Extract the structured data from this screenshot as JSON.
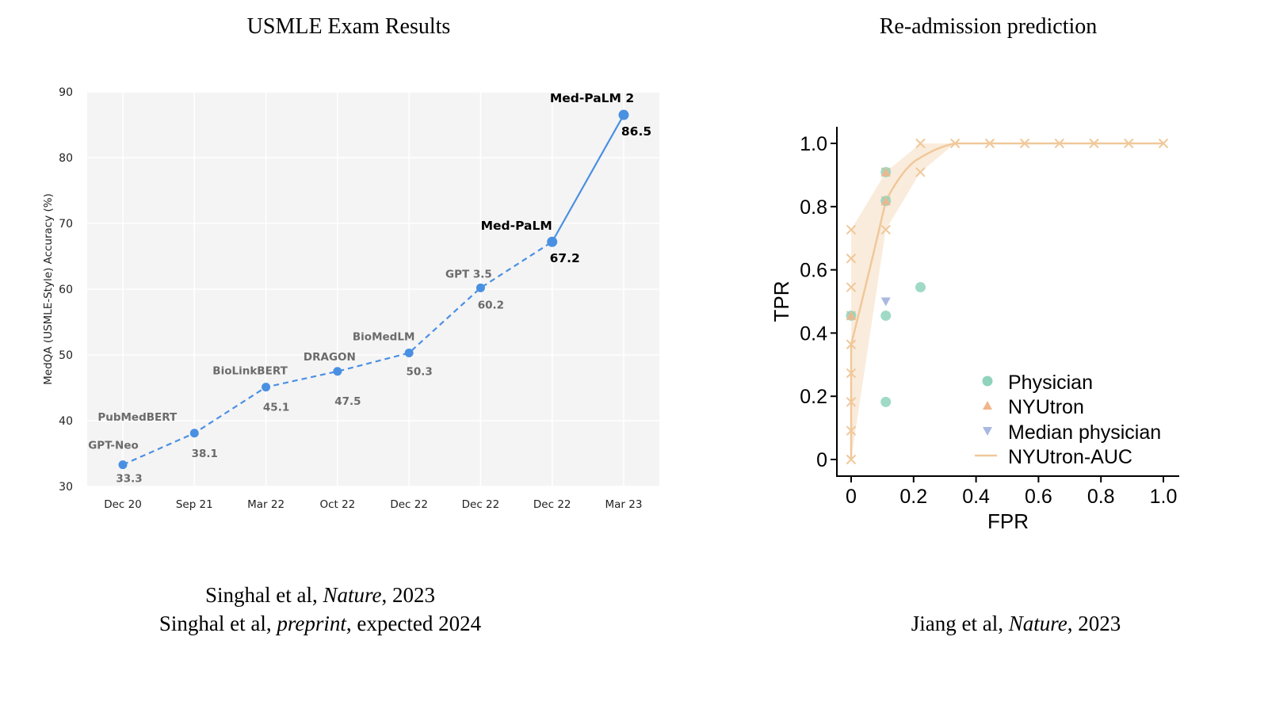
{
  "left_panel": {
    "title": "USMLE Exam Results",
    "citation_1": {
      "authors": "Singhal et al, ",
      "journal": "Nature",
      "year": ", 2023"
    },
    "citation_2": {
      "authors": "Singhal et al, ",
      "journal": "preprint",
      "year": ", expected 2024"
    }
  },
  "right_panel": {
    "title": "Re-admission prediction",
    "citation": {
      "authors": "Jiang et al, ",
      "journal": "Nature",
      "year": ", 2023"
    }
  },
  "colors": {
    "line": "#4a90e2",
    "background": "#f4f4f4",
    "label_gray": "#6b6b6b",
    "orange": "#f0c89a",
    "teal": "#8fd3bc",
    "triangle_blue": "#a9b8e0"
  },
  "chart_data": [
    {
      "type": "line",
      "ylabel": "MedQA (USMLE-Style) Accuracy (%)",
      "xlabel": "",
      "ylim": [
        30,
        90
      ],
      "yticks": [
        "30",
        "40",
        "50",
        "60",
        "70",
        "80",
        "90"
      ],
      "categories": [
        "Dec 20",
        "Sep 21",
        "Mar 22",
        "Oct 22",
        "Dec 22",
        "Dec 22",
        "Dec 22",
        "Mar 23"
      ],
      "points": [
        {
          "model": "GPT-Neo",
          "value": 33.3,
          "value_label": "33.3",
          "highlight": false
        },
        {
          "model": "PubMedBERT",
          "value": 38.1,
          "value_label": "38.1",
          "highlight": false
        },
        {
          "model": "BioLinkBERT",
          "value": 45.1,
          "value_label": "45.1",
          "highlight": false
        },
        {
          "model": "DRAGON",
          "value": 47.5,
          "value_label": "47.5",
          "highlight": false
        },
        {
          "model": "BioMedLM",
          "value": 50.3,
          "value_label": "50.3",
          "highlight": false
        },
        {
          "model": "GPT 3.5",
          "value": 60.2,
          "value_label": "60.2",
          "highlight": false
        },
        {
          "model": "Med-PaLM",
          "value": 67.2,
          "value_label": "67.2",
          "highlight": true
        },
        {
          "model": "Med-PaLM 2",
          "value": 86.5,
          "value_label": "86.5",
          "highlight": true
        }
      ],
      "grid": true
    },
    {
      "type": "scatter",
      "xlabel": "FPR",
      "ylabel": "TPR",
      "xlim": [
        0,
        1
      ],
      "ylim": [
        0,
        1
      ],
      "xticks": [
        "0",
        "0.2",
        "0.4",
        "0.6",
        "0.8",
        "1.0"
      ],
      "yticks": [
        "0",
        "0.2",
        "0.4",
        "0.6",
        "0.8",
        "1.0"
      ],
      "legend": [
        "Physician",
        "NYUtron",
        "Median physician",
        "NYUtron-AUC"
      ],
      "legend_position": "bottom-right",
      "series": [
        {
          "name": "Physician",
          "marker": "circle",
          "points": [
            [
              0,
              0.455
            ],
            [
              0.111,
              0.455
            ],
            [
              0.111,
              0.182
            ],
            [
              0.222,
              0.545
            ],
            [
              0.111,
              0.818
            ],
            [
              0.111,
              0.909
            ]
          ]
        },
        {
          "name": "NYUtron",
          "marker": "triangle-up",
          "points": [
            [
              0.111,
              0.818
            ],
            [
              0.111,
              0.909
            ],
            [
              0,
              0.455
            ]
          ]
        },
        {
          "name": "Median physician",
          "marker": "triangle-down",
          "points": [
            [
              0.111,
              0.5
            ]
          ]
        },
        {
          "name": "NYUtron-AUC",
          "marker": "line",
          "points": [
            [
              0,
              0
            ],
            [
              0,
              0.364
            ],
            [
              0.111,
              0.818
            ],
            [
              0.222,
              0.955
            ],
            [
              0.333,
              1.0
            ],
            [
              1.0,
              1.0
            ]
          ]
        }
      ],
      "cross_points": [
        [
          0,
          0
        ],
        [
          0,
          0.091
        ],
        [
          0,
          0.182
        ],
        [
          0,
          0.273
        ],
        [
          0,
          0.364
        ],
        [
          0,
          0.455
        ],
        [
          0,
          0.545
        ],
        [
          0,
          0.636
        ],
        [
          0,
          0.727
        ],
        [
          0.111,
          0.727
        ],
        [
          0.111,
          0.818
        ],
        [
          0.111,
          0.909
        ],
        [
          0.222,
          0.909
        ],
        [
          0.222,
          1.0
        ],
        [
          0.333,
          1.0
        ],
        [
          0.444,
          1.0
        ],
        [
          0.556,
          1.0
        ],
        [
          0.667,
          1.0
        ],
        [
          0.778,
          1.0
        ],
        [
          0.889,
          1.0
        ],
        [
          1.0,
          1.0
        ]
      ],
      "band_upper": [
        [
          0,
          0.727
        ],
        [
          0.111,
          0.909
        ],
        [
          0.222,
          1.0
        ],
        [
          0.333,
          1.0
        ]
      ],
      "band_lower": [
        [
          0.333,
          1.0
        ],
        [
          0.222,
          0.909
        ],
        [
          0.111,
          0.727
        ],
        [
          0,
          0.0
        ]
      ]
    }
  ]
}
